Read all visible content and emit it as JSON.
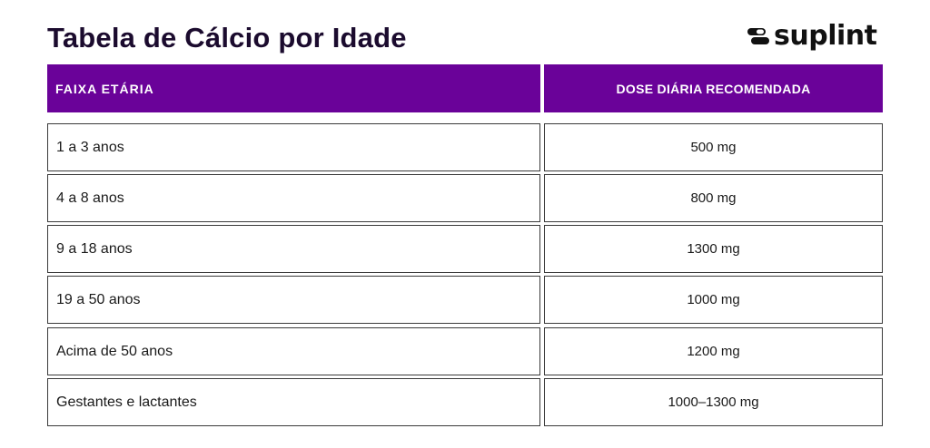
{
  "header": {
    "title": "Tabela de Cálcio por Idade",
    "logo_text": "suplint",
    "logo_icon": "pill-capsule-icon"
  },
  "table": {
    "columns": [
      "FAIXA ETÁRIA",
      "DOSE DIÁRIA RECOMENDADA"
    ],
    "rows": [
      {
        "age": "1 a 3 anos",
        "dose": "500 mg"
      },
      {
        "age": "4 a 8 anos",
        "dose": "800 mg"
      },
      {
        "age": "9 a 18 anos",
        "dose": "1300 mg"
      },
      {
        "age": "19 a 50 anos",
        "dose": "1000 mg"
      },
      {
        "age": "Acima de 50 anos",
        "dose": "1200 mg"
      },
      {
        "age": "Gestantes e lactantes",
        "dose": "1000–1300 mg"
      }
    ]
  },
  "colors": {
    "header_bg": "#6a0299",
    "header_text": "#ffffff",
    "title_text": "#1b0b2e",
    "border": "#3a3a3a"
  }
}
